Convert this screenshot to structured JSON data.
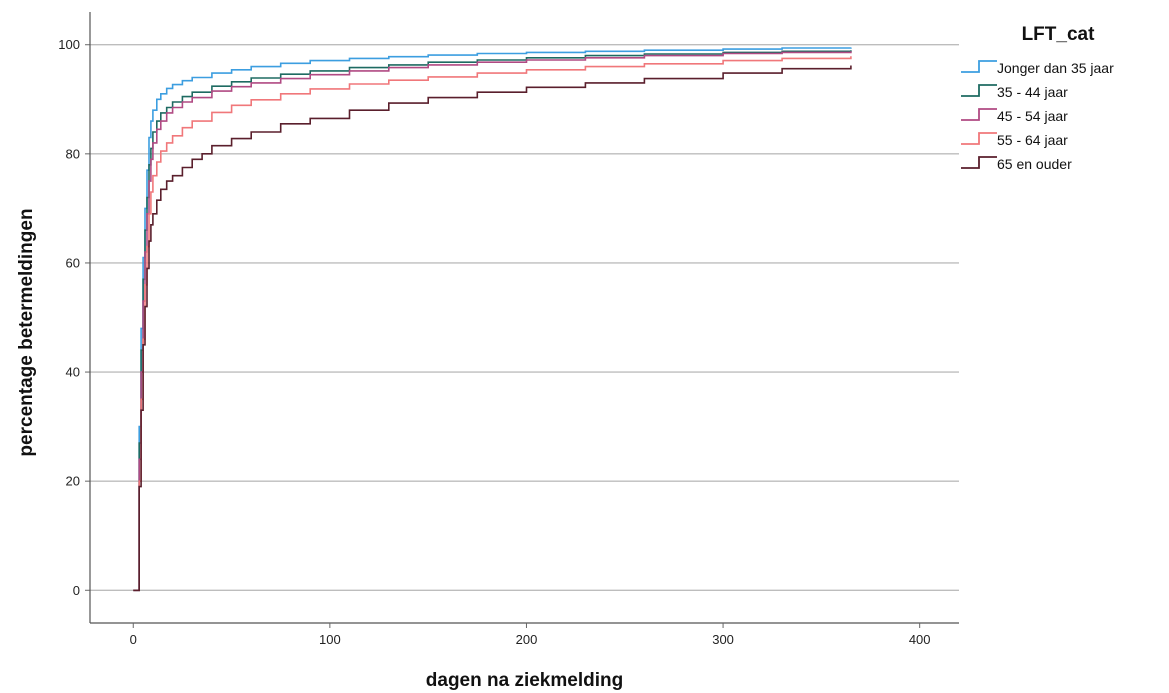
{
  "chart_data": {
    "type": "line",
    "step": true,
    "xlabel": "dagen na ziekmelding",
    "ylabel": "percentage betermeldingen",
    "xlim": [
      -22,
      420
    ],
    "ylim": [
      -6,
      106
    ],
    "x_ticks": [
      0,
      100,
      200,
      300,
      400
    ],
    "y_ticks": [
      0,
      20,
      40,
      60,
      80,
      100
    ],
    "grid": "horizontal",
    "legend": {
      "title": "LFT_cat",
      "position": "right"
    },
    "series": [
      {
        "name": "Jonger dan 35 jaar",
        "color": "#3c9ee0",
        "x": [
          0,
          1,
          2,
          3,
          4,
          5,
          6,
          7,
          8,
          9,
          10,
          12,
          14,
          17,
          20,
          25,
          30,
          40,
          50,
          60,
          75,
          90,
          110,
          130,
          150,
          175,
          200,
          230,
          260,
          300,
          330,
          365
        ],
        "y": [
          0,
          0,
          0,
          30,
          48,
          61,
          70,
          77,
          83,
          86,
          88,
          90,
          91,
          92,
          92.7,
          93.4,
          94,
          94.8,
          95.4,
          96,
          96.6,
          97.1,
          97.5,
          97.8,
          98.1,
          98.4,
          98.6,
          98.8,
          99,
          99.2,
          99.4,
          99.5
        ]
      },
      {
        "name": "35 - 44 jaar",
        "color": "#1e6b62",
        "x": [
          0,
          1,
          2,
          3,
          4,
          5,
          6,
          7,
          8,
          9,
          10,
          12,
          14,
          17,
          20,
          25,
          30,
          40,
          50,
          60,
          75,
          90,
          110,
          130,
          150,
          175,
          200,
          230,
          260,
          300,
          330,
          365
        ],
        "y": [
          0,
          0,
          0,
          27,
          44,
          57,
          66,
          72,
          78,
          81,
          84,
          86,
          87.5,
          88.5,
          89.5,
          90.5,
          91.3,
          92.4,
          93.2,
          93.9,
          94.6,
          95.2,
          95.8,
          96.3,
          96.8,
          97.2,
          97.6,
          98,
          98.3,
          98.6,
          98.8,
          99
        ]
      },
      {
        "name": "45 - 54 jaar",
        "color": "#b04a83",
        "x": [
          0,
          1,
          2,
          3,
          4,
          5,
          6,
          7,
          8,
          9,
          10,
          12,
          14,
          17,
          20,
          25,
          30,
          40,
          50,
          60,
          75,
          90,
          110,
          130,
          150,
          175,
          200,
          230,
          260,
          300,
          330,
          365
        ],
        "y": [
          0,
          0,
          0,
          24,
          40,
          53,
          62,
          69,
          75,
          79,
          82,
          84.5,
          86,
          87.5,
          88.5,
          89.5,
          90.3,
          91.5,
          92.3,
          93,
          93.8,
          94.5,
          95.2,
          95.8,
          96.3,
          96.8,
          97.2,
          97.6,
          98,
          98.4,
          98.6,
          98.8
        ]
      },
      {
        "name": "55 - 64 jaar",
        "color": "#f0777a",
        "x": [
          0,
          1,
          2,
          3,
          4,
          5,
          6,
          7,
          8,
          9,
          10,
          12,
          14,
          17,
          20,
          25,
          30,
          40,
          50,
          60,
          75,
          90,
          110,
          130,
          150,
          175,
          200,
          230,
          260,
          300,
          330,
          365
        ],
        "y": [
          0,
          0,
          0,
          20,
          35,
          46,
          56,
          63,
          69,
          73,
          76,
          78.5,
          80.5,
          82,
          83.3,
          84.8,
          86,
          87.6,
          88.9,
          89.9,
          91,
          91.9,
          92.8,
          93.5,
          94.1,
          94.8,
          95.4,
          96,
          96.5,
          97.1,
          97.5,
          97.9
        ]
      },
      {
        "name": "65 en ouder",
        "color": "#5a1f2c",
        "x": [
          0,
          1,
          2,
          3,
          4,
          5,
          6,
          7,
          8,
          9,
          10,
          12,
          14,
          17,
          20,
          25,
          30,
          35,
          40,
          50,
          60,
          75,
          90,
          110,
          130,
          150,
          175,
          200,
          230,
          260,
          300,
          330,
          365
        ],
        "y": [
          0,
          0,
          0,
          19,
          33,
          45,
          52,
          59,
          64,
          67,
          69,
          71.5,
          73.5,
          75,
          76,
          77.5,
          79,
          80,
          81.5,
          82.8,
          84,
          85.5,
          86.5,
          88,
          89.3,
          90.3,
          91.3,
          92.2,
          93,
          93.8,
          94.8,
          95.6,
          96.2
        ]
      }
    ]
  }
}
